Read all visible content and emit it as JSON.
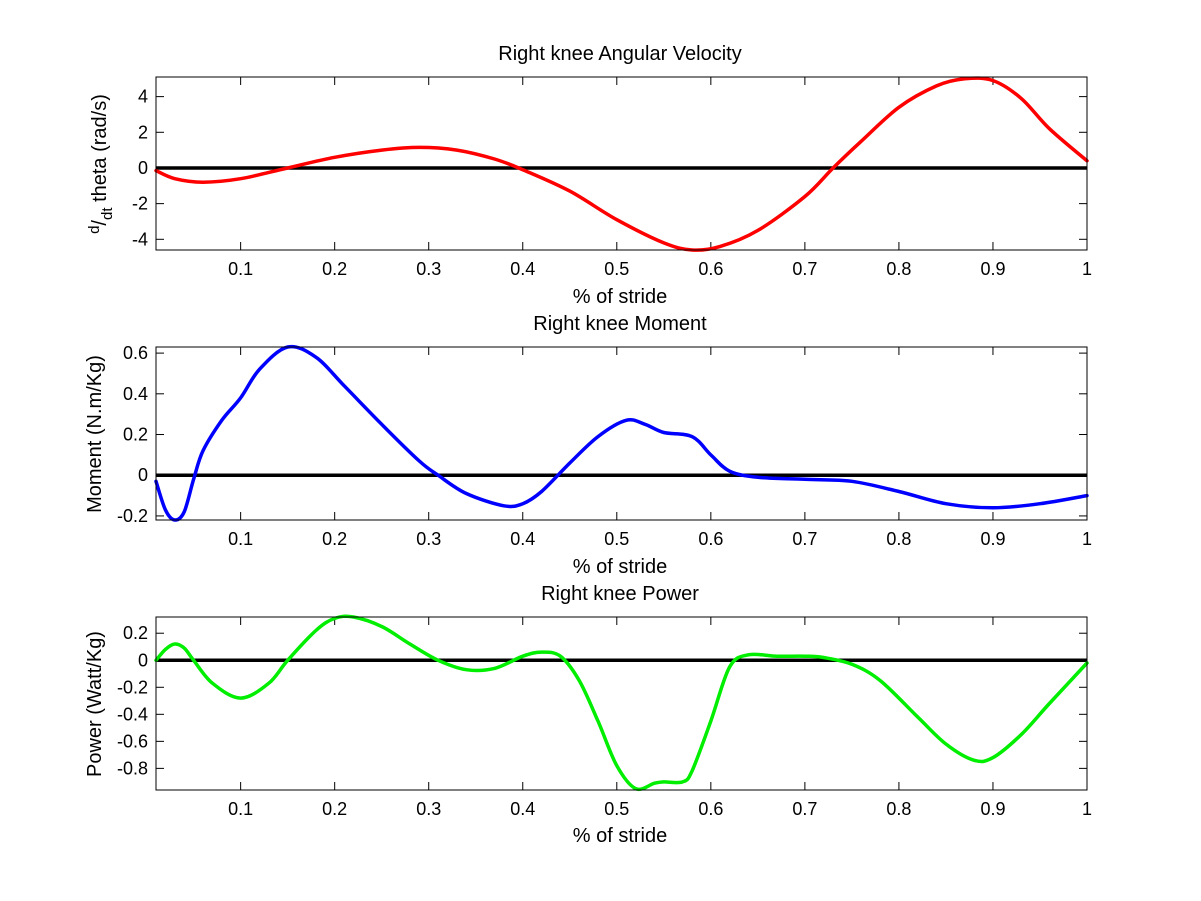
{
  "chart_data": [
    {
      "type": "line",
      "title": "Right knee Angular Velocity",
      "xlabel": "% of stride",
      "ylabel_parts": {
        "d": "d",
        "slash": "/",
        "dt": "dt",
        "rest": " theta (rad/s)"
      },
      "xlim": [
        0.01,
        1
      ],
      "ylim": [
        -4.6,
        5.1
      ],
      "xticks": [
        0.1,
        0.2,
        0.3,
        0.4,
        0.5,
        0.6,
        0.7,
        0.8,
        0.9,
        1
      ],
      "xtick_labels": [
        "0.1",
        "0.2",
        "0.3",
        "0.4",
        "0.5",
        "0.6",
        "0.7",
        "0.8",
        "0.9",
        "1"
      ],
      "yticks": [
        -4,
        -2,
        0,
        2,
        4
      ],
      "ytick_labels": [
        "-4",
        "-2",
        "0",
        "2",
        "4"
      ],
      "grid": false,
      "reference_line_y": 0,
      "series": [
        {
          "color": "#ff0000",
          "x": [
            0.01,
            0.03,
            0.06,
            0.1,
            0.15,
            0.2,
            0.25,
            0.29,
            0.33,
            0.37,
            0.4,
            0.45,
            0.5,
            0.55,
            0.58,
            0.61,
            0.65,
            0.7,
            0.73,
            0.76,
            0.8,
            0.84,
            0.87,
            0.9,
            0.93,
            0.96,
            1.0
          ],
          "y": [
            -0.15,
            -0.6,
            -0.8,
            -0.6,
            0.0,
            0.6,
            1.0,
            1.15,
            1.0,
            0.5,
            -0.1,
            -1.3,
            -2.9,
            -4.2,
            -4.6,
            -4.4,
            -3.5,
            -1.6,
            0.0,
            1.5,
            3.4,
            4.6,
            5.0,
            4.9,
            3.9,
            2.2,
            0.4
          ]
        }
      ]
    },
    {
      "type": "line",
      "title": "Right knee Moment",
      "xlabel": "% of stride",
      "ylabel": "Moment (N.m/Kg)",
      "xlim": [
        0.01,
        1
      ],
      "ylim": [
        -0.22,
        0.63
      ],
      "xticks": [
        0.1,
        0.2,
        0.3,
        0.4,
        0.5,
        0.6,
        0.7,
        0.8,
        0.9,
        1
      ],
      "xtick_labels": [
        "0.1",
        "0.2",
        "0.3",
        "0.4",
        "0.5",
        "0.6",
        "0.7",
        "0.8",
        "0.9",
        "1"
      ],
      "yticks": [
        -0.2,
        0,
        0.2,
        0.4,
        0.6
      ],
      "ytick_labels": [
        "-0.2",
        "0",
        "0.2",
        "0.4",
        "0.6"
      ],
      "grid": false,
      "reference_line_y": 0,
      "series": [
        {
          "color": "#0000ff",
          "x": [
            0.01,
            0.02,
            0.03,
            0.04,
            0.05,
            0.06,
            0.08,
            0.1,
            0.12,
            0.15,
            0.18,
            0.21,
            0.25,
            0.29,
            0.31,
            0.34,
            0.38,
            0.4,
            0.42,
            0.45,
            0.48,
            0.51,
            0.53,
            0.55,
            0.58,
            0.6,
            0.62,
            0.65,
            0.7,
            0.75,
            0.8,
            0.85,
            0.9,
            0.95,
            1.0
          ],
          "y": [
            -0.03,
            -0.17,
            -0.22,
            -0.18,
            -0.02,
            0.12,
            0.27,
            0.38,
            0.52,
            0.63,
            0.58,
            0.44,
            0.25,
            0.07,
            0.0,
            -0.09,
            -0.15,
            -0.14,
            -0.08,
            0.06,
            0.19,
            0.27,
            0.25,
            0.21,
            0.19,
            0.1,
            0.02,
            -0.01,
            -0.02,
            -0.03,
            -0.08,
            -0.14,
            -0.16,
            -0.14,
            -0.1
          ]
        }
      ]
    },
    {
      "type": "line",
      "title": "Right knee Power",
      "xlabel": "% of stride",
      "ylabel": "Power (Watt/Kg)",
      "xlim": [
        0.01,
        1
      ],
      "ylim": [
        -0.96,
        0.32
      ],
      "xticks": [
        0.1,
        0.2,
        0.3,
        0.4,
        0.5,
        0.6,
        0.7,
        0.8,
        0.9,
        1
      ],
      "xtick_labels": [
        "0.1",
        "0.2",
        "0.3",
        "0.4",
        "0.5",
        "0.6",
        "0.7",
        "0.8",
        "0.9",
        "1"
      ],
      "yticks": [
        -0.8,
        -0.6,
        -0.4,
        -0.2,
        0,
        0.2
      ],
      "ytick_labels": [
        "-0.8",
        "-0.6",
        "-0.4",
        "-0.2",
        "0",
        "0.2"
      ],
      "grid": false,
      "reference_line_y": 0,
      "series": [
        {
          "color": "#00ee00",
          "x": [
            0.01,
            0.02,
            0.03,
            0.04,
            0.05,
            0.07,
            0.1,
            0.13,
            0.15,
            0.18,
            0.2,
            0.22,
            0.25,
            0.28,
            0.31,
            0.34,
            0.37,
            0.4,
            0.42,
            0.44,
            0.46,
            0.48,
            0.5,
            0.52,
            0.54,
            0.55,
            0.57,
            0.58,
            0.6,
            0.62,
            0.64,
            0.67,
            0.7,
            0.72,
            0.75,
            0.78,
            0.82,
            0.85,
            0.88,
            0.9,
            0.93,
            0.96,
            1.0
          ],
          "y": [
            0.0,
            0.08,
            0.12,
            0.09,
            0.0,
            -0.17,
            -0.28,
            -0.17,
            0.0,
            0.22,
            0.31,
            0.32,
            0.25,
            0.12,
            0.0,
            -0.07,
            -0.06,
            0.03,
            0.06,
            0.03,
            -0.15,
            -0.45,
            -0.78,
            -0.95,
            -0.91,
            -0.9,
            -0.9,
            -0.82,
            -0.45,
            -0.05,
            0.04,
            0.03,
            0.03,
            0.02,
            -0.03,
            -0.15,
            -0.42,
            -0.62,
            -0.74,
            -0.72,
            -0.55,
            -0.32,
            -0.02
          ]
        }
      ]
    }
  ]
}
